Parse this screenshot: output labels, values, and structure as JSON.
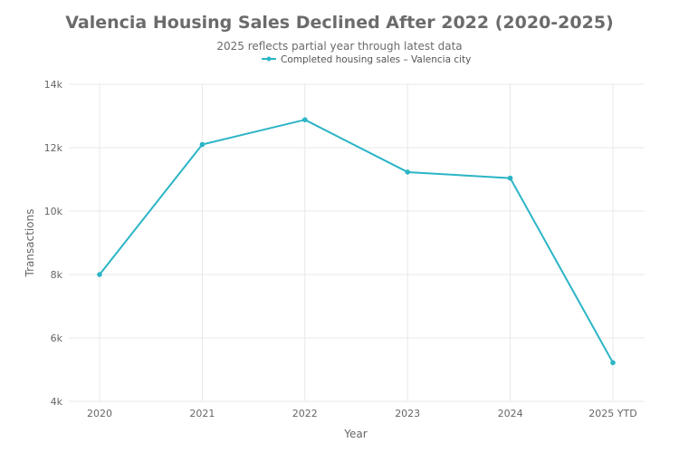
{
  "colors": {
    "series": "#2bb5c6",
    "grid": "#e8e8e8",
    "text": "#666666"
  },
  "chart_data": {
    "type": "line",
    "title": "Valencia Housing Sales Declined After 2022 (2020-2025)",
    "subtitle": "2025 reflects partial year through latest data",
    "xlabel": "Year",
    "ylabel": "Transactions",
    "categories": [
      "2020",
      "2021",
      "2022",
      "2023",
      "2024",
      "2025 YTD"
    ],
    "series": [
      {
        "name": "Completed housing sales – Valencia city",
        "values": [
          8000,
          12100,
          12880,
          11230,
          11040,
          5220
        ]
      }
    ],
    "ylim": [
      4000,
      14000
    ],
    "yticks": [
      4000,
      6000,
      8000,
      10000,
      12000,
      14000
    ],
    "ytick_labels": [
      "4k",
      "6k",
      "8k",
      "10k",
      "12k",
      "14k"
    ],
    "grid": true,
    "legend_position": "top-center"
  }
}
